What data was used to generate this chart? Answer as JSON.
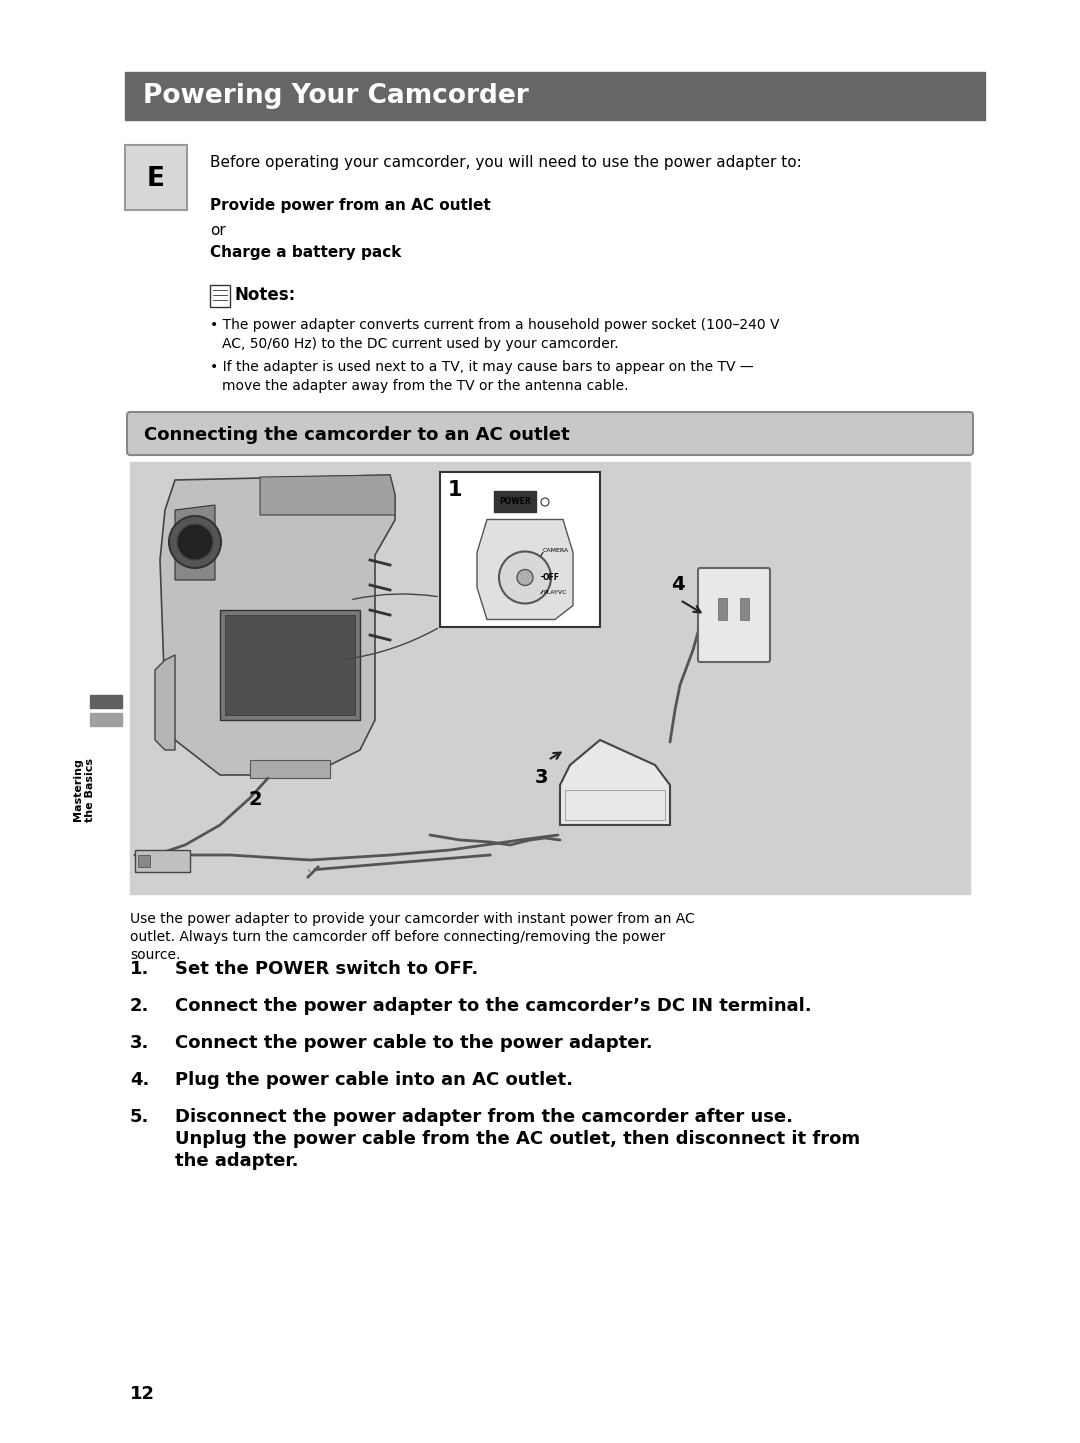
{
  "page_bg": "#ffffff",
  "title_bg": "#666666",
  "title_text": "Powering Your Camcorder",
  "title_color": "#ffffff",
  "title_fontsize": 19,
  "subtitle_bg": "#c8c8c8",
  "subtitle_text": "Connecting the camcorder to an AC outlet",
  "subtitle_fontsize": 13,
  "image_bg": "#d0d0d0",
  "e_box_bg": "#d8d8d8",
  "e_box_text": "E",
  "body_text_intro": "Before operating your camcorder, you will need to use the power adapter to:",
  "bold_line1": "Provide power from an AC outlet",
  "or_text": "or",
  "bold_line2": "Charge a battery pack",
  "notes_header": "Notes:",
  "note1_line1": "The power adapter converts current from a household power socket (100–240 V",
  "note1_line2": "AC, 50/60 Hz) to the DC current used by your camcorder.",
  "note2_line1": "If the adapter is used next to a TV, it may cause bars to appear on the TV —",
  "note2_line2": "move the adapter away from the TV or the antenna cable.",
  "image_caption_1": "Use the power adapter to provide your camcorder with instant power from an AC",
  "image_caption_2": "outlet. Always turn the camcorder off before connecting/removing the power",
  "image_caption_3": "source.",
  "steps": [
    "Set the POWER switch to OFF.",
    "Connect the power adapter to the camcorder’s DC IN terminal.",
    "Connect the power cable to the power adapter.",
    "Plug the power cable into an AC outlet.",
    "Disconnect the power adapter from the camcorder after use.",
    "Unplug the power cable from the AC outlet, then disconnect it from",
    "the adapter."
  ],
  "page_number": "12",
  "sidebar_text_1": "Mastering",
  "sidebar_text_2": "the Basics",
  "fontsize_body": 11,
  "fontsize_notes": 10,
  "fontsize_steps": 13
}
